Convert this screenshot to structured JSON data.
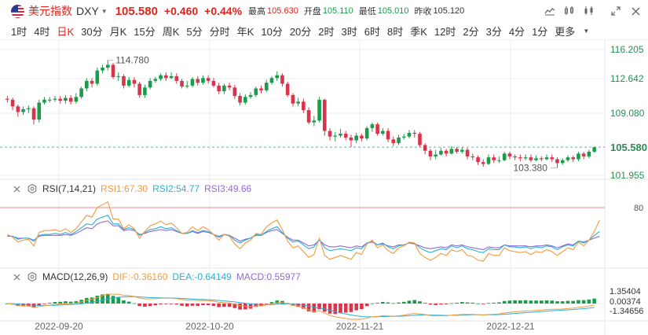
{
  "header": {
    "name": "美元指数",
    "symbol": "DXY",
    "price": "105.580",
    "change": "+0.460",
    "change_pct": "+0.44%",
    "stats": [
      {
        "label": "最高",
        "value": "105.630",
        "tone": "up"
      },
      {
        "label": "开盘",
        "value": "105.110",
        "tone": "down"
      },
      {
        "label": "最低",
        "value": "105.010",
        "tone": "down"
      },
      {
        "label": "昨收",
        "value": "105.120",
        "tone": "neutral"
      }
    ],
    "icons": [
      "line-chart-icon",
      "bar-chart-icon",
      "candlestick-icon",
      "expand-icon",
      "close-icon"
    ]
  },
  "periods": {
    "items": [
      "1时",
      "4时",
      "日K",
      "30分",
      "月K",
      "15分",
      "周K",
      "5分",
      "分时",
      "年K",
      "10分",
      "20分",
      "2时",
      "3时",
      "6时",
      "8时",
      "季K",
      "12时",
      "2分",
      "3分",
      "4分",
      "1分",
      "更多"
    ],
    "active": "日K"
  },
  "colors": {
    "up": "#e2231a",
    "down": "#1a9c4a",
    "rsi1": "#f39a3c",
    "rsi2": "#2ab0d8",
    "rsi3": "#8e6bd4",
    "grid": "#eeeeee"
  },
  "rsi": {
    "name": "RSI(7,14,21)",
    "v1": "RSI1:67.30",
    "v2": "RSI2:54.77",
    "v3": "RSI3:49.66",
    "level": "80"
  },
  "macd": {
    "name": "MACD(12,26,9)",
    "dif": "DIF:-0.36160",
    "dea": "DEA:-0.64149",
    "macd": "MACD:0.55977",
    "ticks": [
      "1.35404",
      "0.00374",
      "-1.34656"
    ]
  },
  "chart_data": {
    "type": "candlestick",
    "y_ticks": [
      "116.205",
      "112.642",
      "109.080",
      "105.580",
      "101.955"
    ],
    "ylim": [
      101.955,
      116.205
    ],
    "last_price": 105.58,
    "annotations": {
      "high": "114.780",
      "low": "103.380"
    },
    "x_labels": [
      "2022-09-20",
      "2022-10-20",
      "2022-11-21",
      "2022-12-21"
    ],
    "candles": [
      [
        110.7,
        110.6,
        111.0,
        110.3
      ],
      [
        110.6,
        109.9,
        110.8,
        109.5
      ],
      [
        109.9,
        109.3,
        110.1,
        108.8
      ],
      [
        109.3,
        109.6,
        109.9,
        109.0
      ],
      [
        109.6,
        109.7,
        110.0,
        109.2
      ],
      [
        109.7,
        108.5,
        109.9,
        108.0
      ],
      [
        108.5,
        110.3,
        110.6,
        108.2
      ],
      [
        110.3,
        110.6,
        110.9,
        110.1
      ],
      [
        110.6,
        110.6,
        110.9,
        110.3
      ],
      [
        110.6,
        110.7,
        111.0,
        110.4
      ],
      [
        110.7,
        110.5,
        111.0,
        110.2
      ],
      [
        110.5,
        110.8,
        111.1,
        110.2
      ],
      [
        110.8,
        110.4,
        111.1,
        110.1
      ],
      [
        110.4,
        110.9,
        111.3,
        110.2
      ],
      [
        110.9,
        111.8,
        112.0,
        110.7
      ],
      [
        111.8,
        112.6,
        112.9,
        111.5
      ],
      [
        112.6,
        112.3,
        112.9,
        111.9
      ],
      [
        112.3,
        113.7,
        114.0,
        112.1
      ],
      [
        113.7,
        114.0,
        114.3,
        113.4
      ],
      [
        114.0,
        114.3,
        114.78,
        113.7
      ],
      [
        114.3,
        113.0,
        114.5,
        112.8
      ],
      [
        113.0,
        113.1,
        113.5,
        112.6
      ],
      [
        113.1,
        112.1,
        113.3,
        111.8
      ],
      [
        112.1,
        112.7,
        113.0,
        111.9
      ],
      [
        112.7,
        112.3,
        113.0,
        111.9
      ],
      [
        112.3,
        111.1,
        112.5,
        110.8
      ],
      [
        111.1,
        111.9,
        112.2,
        110.8
      ],
      [
        111.9,
        112.6,
        112.9,
        111.7
      ],
      [
        112.6,
        112.8,
        113.0,
        112.4
      ],
      [
        112.8,
        113.2,
        113.4,
        112.6
      ],
      [
        113.2,
        112.9,
        113.5,
        112.6
      ],
      [
        112.9,
        113.1,
        113.5,
        112.8
      ],
      [
        113.1,
        112.6,
        113.4,
        112.3
      ],
      [
        112.6,
        112.0,
        112.8,
        111.8
      ],
      [
        112.0,
        112.1,
        112.6,
        111.8
      ],
      [
        112.1,
        112.8,
        113.0,
        111.9
      ],
      [
        112.8,
        112.4,
        113.1,
        112.1
      ],
      [
        112.4,
        112.9,
        113.2,
        112.2
      ],
      [
        112.9,
        112.6,
        113.2,
        112.3
      ],
      [
        112.6,
        112.1,
        112.9,
        111.9
      ],
      [
        112.1,
        111.5,
        112.4,
        111.2
      ],
      [
        111.5,
        112.1,
        112.3,
        111.2
      ],
      [
        112.1,
        111.9,
        112.4,
        111.6
      ],
      [
        111.9,
        111.0,
        112.2,
        110.7
      ],
      [
        111.0,
        110.3,
        111.3,
        110.0
      ],
      [
        110.3,
        110.9,
        111.2,
        110.1
      ],
      [
        110.9,
        111.1,
        111.4,
        110.7
      ],
      [
        111.1,
        111.8,
        112.0,
        110.9
      ],
      [
        111.8,
        111.6,
        112.1,
        111.3
      ],
      [
        111.6,
        112.4,
        112.7,
        111.4
      ],
      [
        112.4,
        112.9,
        113.1,
        112.2
      ],
      [
        112.9,
        113.2,
        113.6,
        112.6
      ],
      [
        113.2,
        112.3,
        113.4,
        112.0
      ],
      [
        112.3,
        111.1,
        112.5,
        110.9
      ],
      [
        111.1,
        110.2,
        111.3,
        109.9
      ],
      [
        110.2,
        110.4,
        110.8,
        109.9
      ],
      [
        110.4,
        109.5,
        110.7,
        109.2
      ],
      [
        109.5,
        108.2,
        109.8,
        108.0
      ],
      [
        108.2,
        108.4,
        108.9,
        107.8
      ],
      [
        108.4,
        110.6,
        110.9,
        108.2
      ],
      [
        110.6,
        107.3,
        110.7,
        106.8
      ],
      [
        107.3,
        106.7,
        107.6,
        106.3
      ],
      [
        106.7,
        106.8,
        107.2,
        106.2
      ],
      [
        106.8,
        107.0,
        107.5,
        106.6
      ],
      [
        107.0,
        106.6,
        107.3,
        106.3
      ],
      [
        106.6,
        106.3,
        106.9,
        105.6
      ],
      [
        106.3,
        106.8,
        107.1,
        106.0
      ],
      [
        106.8,
        106.5,
        107.0,
        106.2
      ],
      [
        106.5,
        107.6,
        107.8,
        106.3
      ],
      [
        107.6,
        108.0,
        108.2,
        107.2
      ],
      [
        108.0,
        107.0,
        108.2,
        106.8
      ],
      [
        107.0,
        107.3,
        107.6,
        106.8
      ],
      [
        107.3,
        106.4,
        107.6,
        106.1
      ],
      [
        106.4,
        106.0,
        106.7,
        105.7
      ],
      [
        106.0,
        106.6,
        106.9,
        105.8
      ],
      [
        106.6,
        106.7,
        107.0,
        106.4
      ],
      [
        106.7,
        107.1,
        107.4,
        106.5
      ],
      [
        107.1,
        107.0,
        107.4,
        106.6
      ],
      [
        107.0,
        105.8,
        107.2,
        105.6
      ],
      [
        105.8,
        105.2,
        106.0,
        104.8
      ],
      [
        105.2,
        104.6,
        105.4,
        104.2
      ],
      [
        104.6,
        104.8,
        105.3,
        104.3
      ],
      [
        104.8,
        105.2,
        105.5,
        104.7
      ],
      [
        105.2,
        104.9,
        105.4,
        104.6
      ],
      [
        104.9,
        105.4,
        105.7,
        104.8
      ],
      [
        105.4,
        105.1,
        105.6,
        104.9
      ],
      [
        105.1,
        105.3,
        105.6,
        104.9
      ],
      [
        105.3,
        104.6,
        105.5,
        104.3
      ],
      [
        104.6,
        104.5,
        104.9,
        104.2
      ],
      [
        104.5,
        104.0,
        104.7,
        103.7
      ],
      [
        104.0,
        103.8,
        104.3,
        103.5
      ],
      [
        103.8,
        104.5,
        104.8,
        103.7
      ],
      [
        104.5,
        104.2,
        104.8,
        103.9
      ],
      [
        104.2,
        104.2,
        104.6,
        103.9
      ],
      [
        104.2,
        104.9,
        105.1,
        104.1
      ],
      [
        104.9,
        104.6,
        105.1,
        104.3
      ],
      [
        104.6,
        104.5,
        104.8,
        104.2
      ],
      [
        104.5,
        104.4,
        104.8,
        104.1
      ],
      [
        104.4,
        104.5,
        104.8,
        104.2
      ],
      [
        104.5,
        104.2,
        104.8,
        104.0
      ],
      [
        104.2,
        104.4,
        104.7,
        104.1
      ],
      [
        104.4,
        104.3,
        104.6,
        104.1
      ],
      [
        104.3,
        104.5,
        104.8,
        104.2
      ],
      [
        104.5,
        104.3,
        104.8,
        104.0
      ],
      [
        104.3,
        103.9,
        104.5,
        103.38
      ],
      [
        103.9,
        104.2,
        104.4,
        103.7
      ],
      [
        104.2,
        104.5,
        104.7,
        104.0
      ],
      [
        104.5,
        104.3,
        104.7,
        104.0
      ],
      [
        104.3,
        104.9,
        105.1,
        104.1
      ],
      [
        104.9,
        104.6,
        105.1,
        104.3
      ],
      [
        104.6,
        105.1,
        105.3,
        104.4
      ],
      [
        105.1,
        105.58,
        105.63,
        105.01
      ]
    ],
    "rsi1": [
      52,
      49,
      44,
      46,
      47,
      40,
      54,
      56,
      56,
      57,
      55,
      58,
      54,
      58,
      65,
      72,
      70,
      80,
      83,
      86,
      68,
      68,
      58,
      62,
      58,
      48,
      55,
      61,
      63,
      66,
      62,
      64,
      59,
      53,
      54,
      60,
      56,
      60,
      57,
      52,
      46,
      52,
      50,
      42,
      37,
      43,
      46,
      53,
      52,
      60,
      64,
      67,
      57,
      45,
      38,
      40,
      34,
      28,
      31,
      48,
      30,
      26,
      28,
      30,
      28,
      26,
      33,
      31,
      42,
      46,
      38,
      41,
      35,
      32,
      38,
      40,
      44,
      43,
      32,
      28,
      25,
      28,
      32,
      30,
      36,
      34,
      36,
      30,
      29,
      25,
      24,
      32,
      30,
      30,
      38,
      35,
      34,
      33,
      34,
      31,
      34,
      33,
      36,
      34,
      30,
      34,
      38,
      36,
      44,
      40,
      46,
      55,
      67
    ],
    "rsi2": [
      51,
      50,
      47,
      48,
      48,
      45,
      51,
      52,
      52,
      53,
      52,
      54,
      52,
      55,
      59,
      63,
      62,
      68,
      70,
      72,
      63,
      63,
      57,
      59,
      57,
      51,
      54,
      57,
      58,
      60,
      58,
      59,
      56,
      53,
      53,
      56,
      54,
      56,
      55,
      52,
      49,
      52,
      51,
      46,
      43,
      46,
      48,
      52,
      51,
      55,
      58,
      60,
      54,
      48,
      44,
      45,
      41,
      37,
      39,
      47,
      38,
      35,
      36,
      37,
      36,
      35,
      38,
      37,
      43,
      45,
      41,
      43,
      39,
      37,
      40,
      41,
      43,
      43,
      38,
      35,
      33,
      35,
      37,
      36,
      40,
      38,
      40,
      37,
      36,
      34,
      33,
      37,
      36,
      36,
      41,
      39,
      39,
      38,
      39,
      37,
      39,
      38,
      40,
      39,
      36,
      39,
      41,
      40,
      45,
      43,
      46,
      51,
      55
    ],
    "rsi3": [
      50,
      50,
      48,
      48,
      48,
      46,
      50,
      51,
      51,
      51,
      51,
      52,
      51,
      53,
      56,
      59,
      58,
      63,
      65,
      66,
      61,
      61,
      56,
      57,
      56,
      52,
      53,
      55,
      56,
      57,
      56,
      57,
      55,
      53,
      53,
      55,
      53,
      55,
      54,
      52,
      50,
      52,
      51,
      48,
      45,
      47,
      48,
      51,
      51,
      54,
      56,
      57,
      53,
      49,
      46,
      46,
      43,
      40,
      41,
      46,
      41,
      39,
      39,
      40,
      39,
      38,
      40,
      39,
      43,
      44,
      41,
      42,
      40,
      39,
      41,
      41,
      43,
      42,
      40,
      38,
      37,
      38,
      39,
      38,
      41,
      40,
      41,
      39,
      38,
      37,
      36,
      39,
      38,
      38,
      41,
      40,
      40,
      40,
      40,
      39,
      40,
      40,
      41,
      40,
      38,
      40,
      42,
      41,
      45,
      44,
      46,
      48,
      50
    ]
  }
}
